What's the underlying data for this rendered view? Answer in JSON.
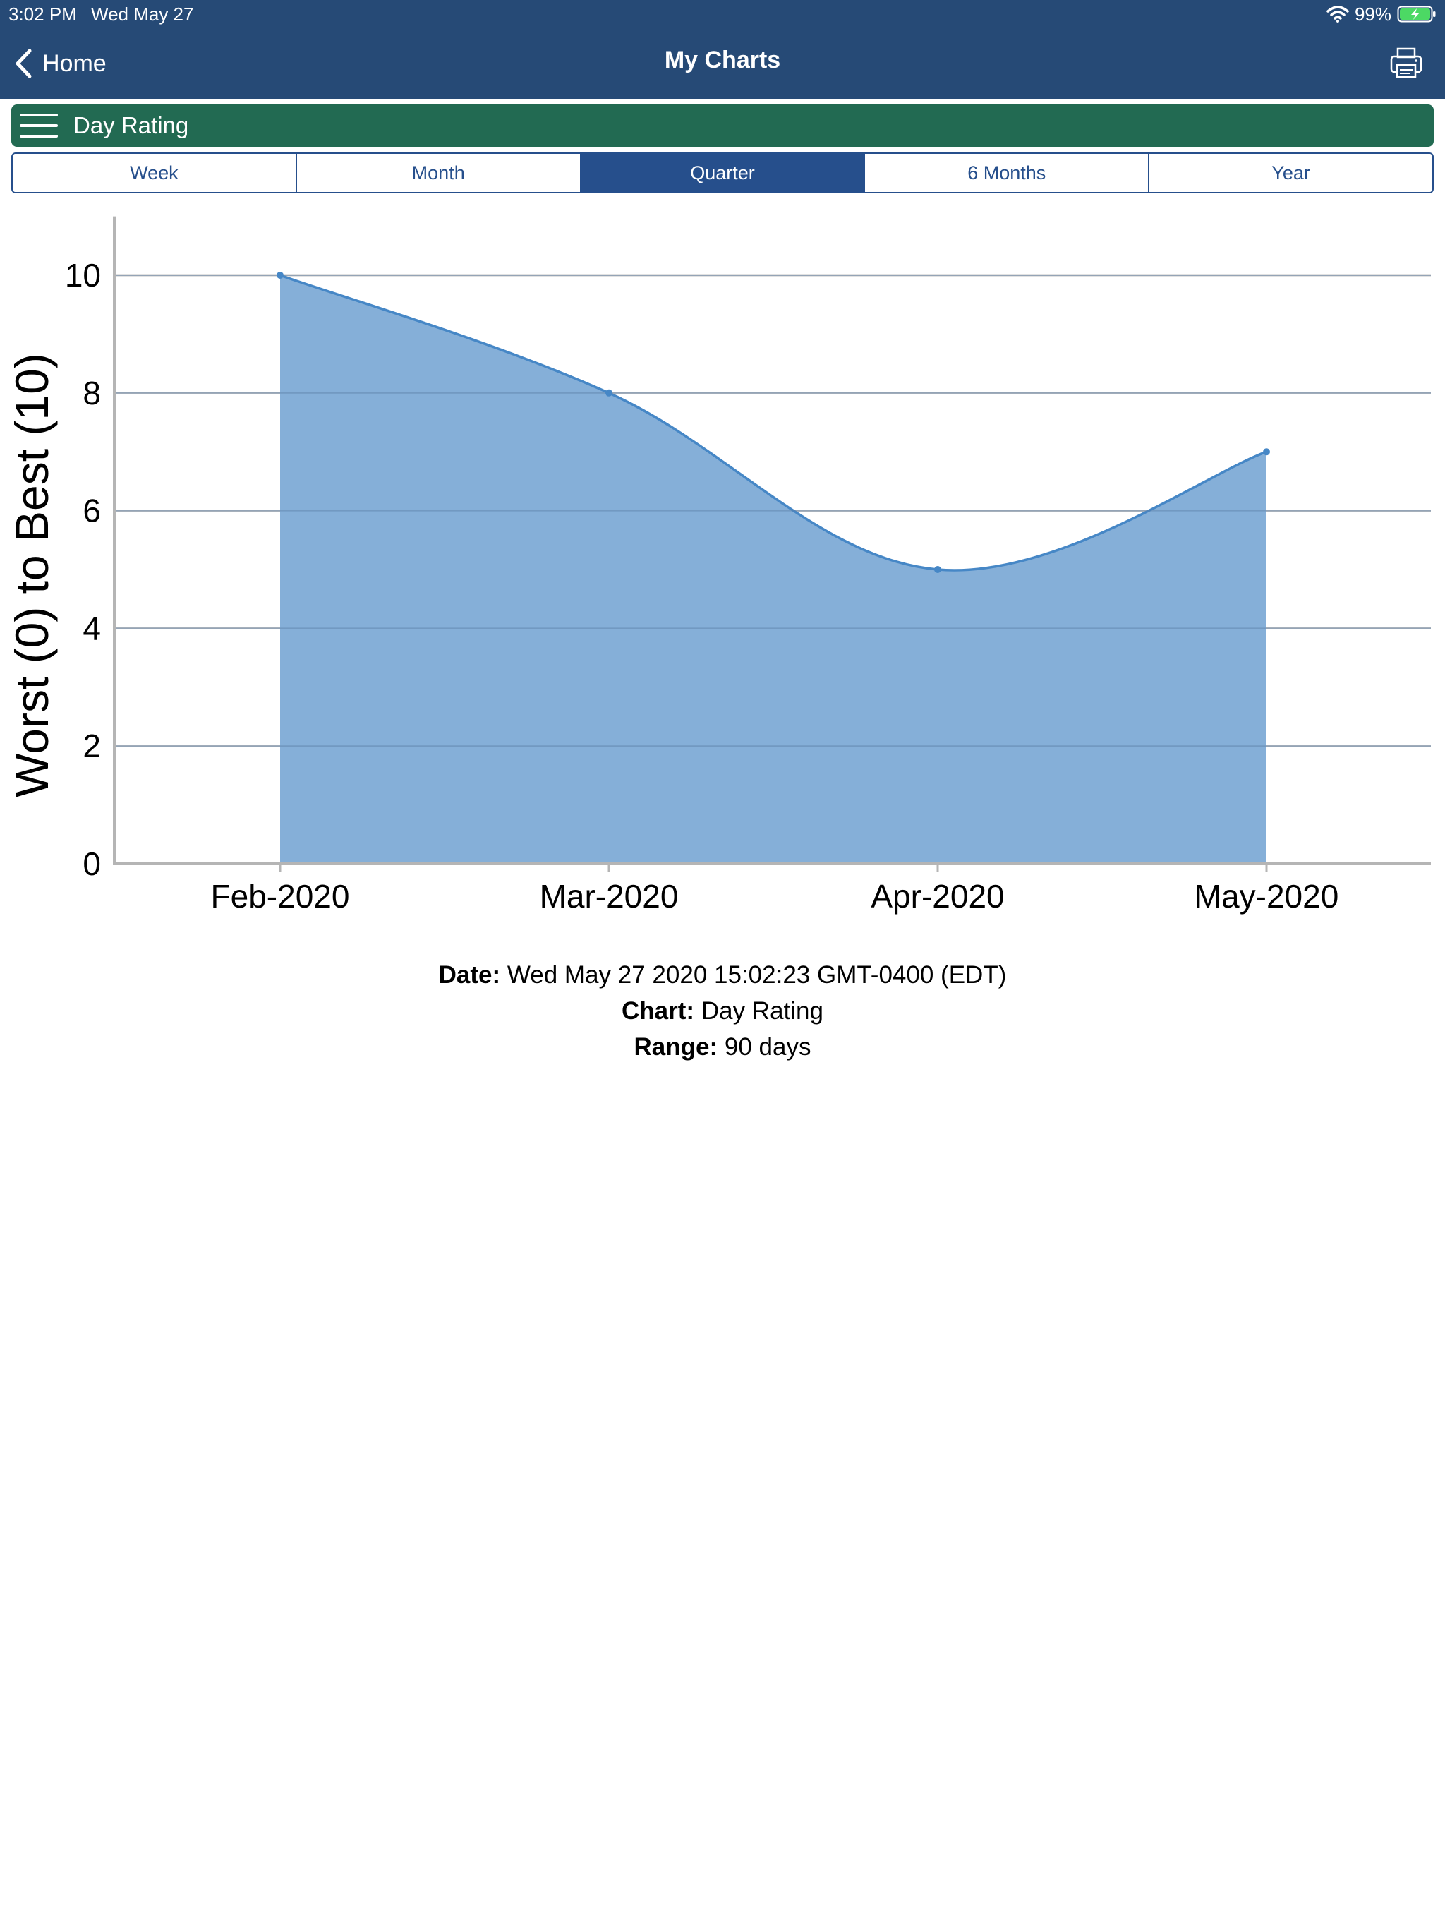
{
  "status_bar": {
    "time": "3:02 PM",
    "date": "Wed May 27",
    "battery_percent": "99%",
    "wifi_icon": "wifi-icon",
    "battery_icon": "battery-charging-icon"
  },
  "nav": {
    "back_label": "Home",
    "title": "My Charts",
    "back_icon": "chevron-left-icon",
    "print_icon": "printer-icon"
  },
  "chart_selector": {
    "label": "Day Rating",
    "icon": "hamburger-icon"
  },
  "range_tabs": [
    {
      "label": "Week",
      "selected": false
    },
    {
      "label": "Month",
      "selected": false
    },
    {
      "label": "Quarter",
      "selected": true
    },
    {
      "label": "6 Months",
      "selected": false
    },
    {
      "label": "Year",
      "selected": false
    }
  ],
  "chart_data": {
    "type": "area",
    "title": "",
    "ylabel": "Worst (0) to Best (10)",
    "xlabel": "",
    "categories": [
      "Feb-2020",
      "Mar-2020",
      "Apr-2020",
      "May-2020"
    ],
    "values": [
      10,
      8,
      5,
      7
    ],
    "ylim": [
      0,
      11
    ],
    "yticks": [
      0,
      2,
      4,
      6,
      8,
      10
    ],
    "grid": true,
    "legend": "none"
  },
  "info": {
    "date_label": "Date:",
    "date_value": "Wed May 27 2020 15:02:23 GMT-0400 (EDT)",
    "chart_label": "Chart:",
    "chart_value": "Day Rating",
    "range_label": "Range:",
    "range_value": "90 days"
  },
  "colors": {
    "header": "#264a76",
    "selector": "#226a52",
    "tab_accent": "#264f8c",
    "area_fill": "#85afd8",
    "area_line": "#4687c6"
  }
}
